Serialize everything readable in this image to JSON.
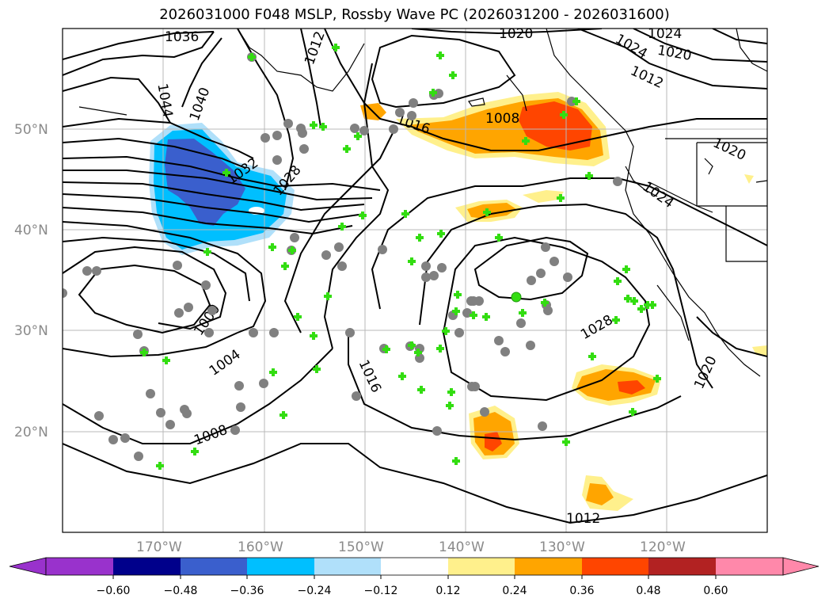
{
  "title": "2026031000 F048 MSLP, Rossby Wave PC (2026031200 - 2026031600)",
  "map": {
    "lat_labels": [
      "50°N",
      "40°N",
      "30°N",
      "20°N"
    ],
    "lon_labels": [
      "170°W",
      "160°W",
      "150°W",
      "140°W",
      "130°W",
      "120°W"
    ],
    "isobar_labels": [
      "1036",
      "1044",
      "1040",
      "1032",
      "1028",
      "1020",
      "1024",
      "1016",
      "1012",
      "1008",
      "1020",
      "1024",
      "1000",
      "1004",
      "1008",
      "1016",
      "1028",
      "1020",
      "1012"
    ]
  },
  "colorbar": {
    "ticks": [
      "−0.60",
      "−0.48",
      "−0.36",
      "−0.24",
      "−0.12",
      "0.12",
      "0.24",
      "0.36",
      "0.48",
      "0.60"
    ],
    "colors": {
      "lt_neg_extend": "#9932cc",
      "b1": "#00008b",
      "b2": "#3a5fcd",
      "b3": "#00bfff",
      "b4": "#b0e0fa",
      "b5": "#ffffff",
      "b6": "#ffffff",
      "b7": "#fff08c",
      "b8": "#ffa500",
      "b9": "#ff4500",
      "b10": "#b22222",
      "b11": "#ff88aa",
      "gt_pos_extend": "#ff88aa"
    }
  },
  "markers": {
    "grey_circle_color": "#808080",
    "green_cross_color": "#33dd11"
  }
}
